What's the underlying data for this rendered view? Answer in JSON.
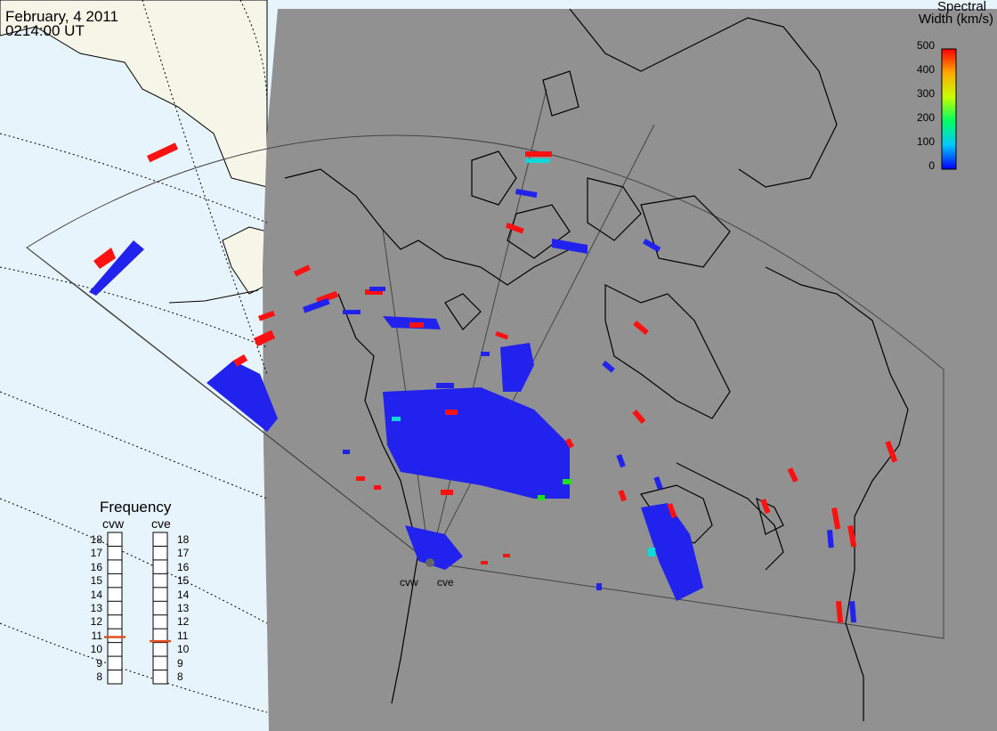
{
  "header": {
    "date": "February, 4 2011",
    "time": "0214:00 UT"
  },
  "colorbar": {
    "title_line1": "Spectral",
    "title_line2": "Width (km/s)",
    "ticks": [
      "500",
      "400",
      "300",
      "200",
      "100",
      "0"
    ],
    "range": [
      0,
      500
    ],
    "colors": [
      "#0000ff",
      "#00c8ff",
      "#00ff64",
      "#c8ff00",
      "#ffaa00",
      "#ff0000"
    ]
  },
  "frequency": {
    "title": "Frequency",
    "radar_cvw": "cvw",
    "radar_cve": "cve",
    "scale_values": [
      "18",
      "17",
      "16",
      "15",
      "14",
      "13",
      "12",
      "11",
      "10",
      "9",
      "8"
    ],
    "cvw_mhz": 10.9,
    "cve_mhz": 10.6,
    "marker_color": "#e05020"
  },
  "radars": {
    "west_label": "cvw",
    "east_label": "cve"
  },
  "colors": {
    "ocean_light": "#e8f4fb",
    "land_light": "#f5f5e8",
    "night_gray": "#919191",
    "scatter_blue": "#2222ee",
    "scatter_red": "#ff1111",
    "scatter_cyan": "#10d8d8",
    "scatter_green": "#20e020"
  }
}
